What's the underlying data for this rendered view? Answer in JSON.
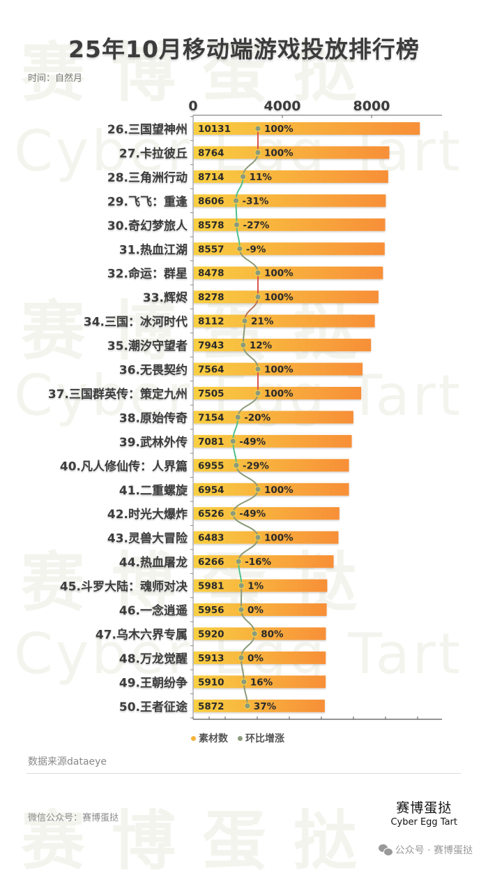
{
  "header": {
    "title": "25年10月移动端游戏投放排行榜",
    "subtitle": "时间：自然月"
  },
  "watermark": {
    "cn": "赛博蛋挞",
    "en": "Cyber Egg Tart"
  },
  "colors": {
    "bar_start": "#f9cf42",
    "bar_end": "#f78f38",
    "line_up": "#d9534f",
    "line_down": "#4fbf8c",
    "dot_fill": "#8c9a7e",
    "dot_stroke": "#f5d44a",
    "text_dark": "#3a3a3a",
    "legend_bar": "#f3b33d",
    "legend_line": "#8c9a7e"
  },
  "chart_data": {
    "type": "bar",
    "orientation": "horizontal",
    "title": "25年10月移动端游戏投放排行榜",
    "subtitle": "时间：自然月",
    "xlabel": "",
    "ylabel": "",
    "x_ticks": [
      "0",
      "4000",
      "8000"
    ],
    "xlim": [
      0,
      11000
    ],
    "grid": false,
    "legend_position": "bottom",
    "categories": [
      "26.三国望神州",
      "27.卡拉彼丘",
      "28.三角洲行动",
      "29.飞飞：重逢",
      "30.奇幻梦旅人",
      "31.热血江湖",
      "32.命运：群星",
      "33.辉烬",
      "34.三国：冰河时代",
      "35.潮汐守望者",
      "36.无畏契约",
      "37.三国群英传：策定九州",
      "38.原始传奇",
      "39.武林外传",
      "40.凡人修仙传：人界篇",
      "41.二重螺旋",
      "42.时光大爆炸",
      "43.灵兽大冒险",
      "44.热血屠龙",
      "45.斗罗大陆：魂师对决",
      "46.一念逍遥",
      "47.乌木六界专属",
      "48.万龙觉醒",
      "49.王朝纷争",
      "50.王者征途"
    ],
    "series": [
      {
        "name": "素材数",
        "type": "bar",
        "values": [
          10131,
          8764,
          8714,
          8606,
          8578,
          8557,
          8478,
          8278,
          8112,
          7943,
          7564,
          7505,
          7154,
          7081,
          6955,
          6954,
          6526,
          6483,
          6266,
          5981,
          5956,
          5920,
          5913,
          5910,
          5872
        ]
      },
      {
        "name": "环比增涨",
        "type": "line",
        "unit": "%",
        "values": [
          100,
          100,
          11,
          -31,
          -27,
          -9,
          100,
          100,
          21,
          12,
          100,
          100,
          -20,
          -49,
          -29,
          100,
          -49,
          100,
          -16,
          1,
          0,
          80,
          0,
          16,
          37
        ],
        "labels": [
          "100%",
          "100%",
          "11%",
          "-31%",
          "-27%",
          "-9%",
          "100%",
          "100%",
          "21%",
          "12%",
          "100%",
          "100%",
          "-20%",
          "-49%",
          "-29%",
          "100%",
          "-49%",
          "100%",
          "-16%",
          "1%",
          "0%",
          "80%",
          "0%",
          "16%",
          "37%"
        ]
      }
    ]
  },
  "legend": {
    "items": [
      {
        "label": "素材数"
      },
      {
        "label": "环比增涨"
      }
    ]
  },
  "footer": {
    "source": "数据来源dataeye",
    "wechat_id": "微信公众号：赛博蛋挞",
    "logo_cn": "赛博蛋挞",
    "logo_en": "Cyber Egg Tart",
    "account": "公众号 · 赛博蛋挞"
  }
}
